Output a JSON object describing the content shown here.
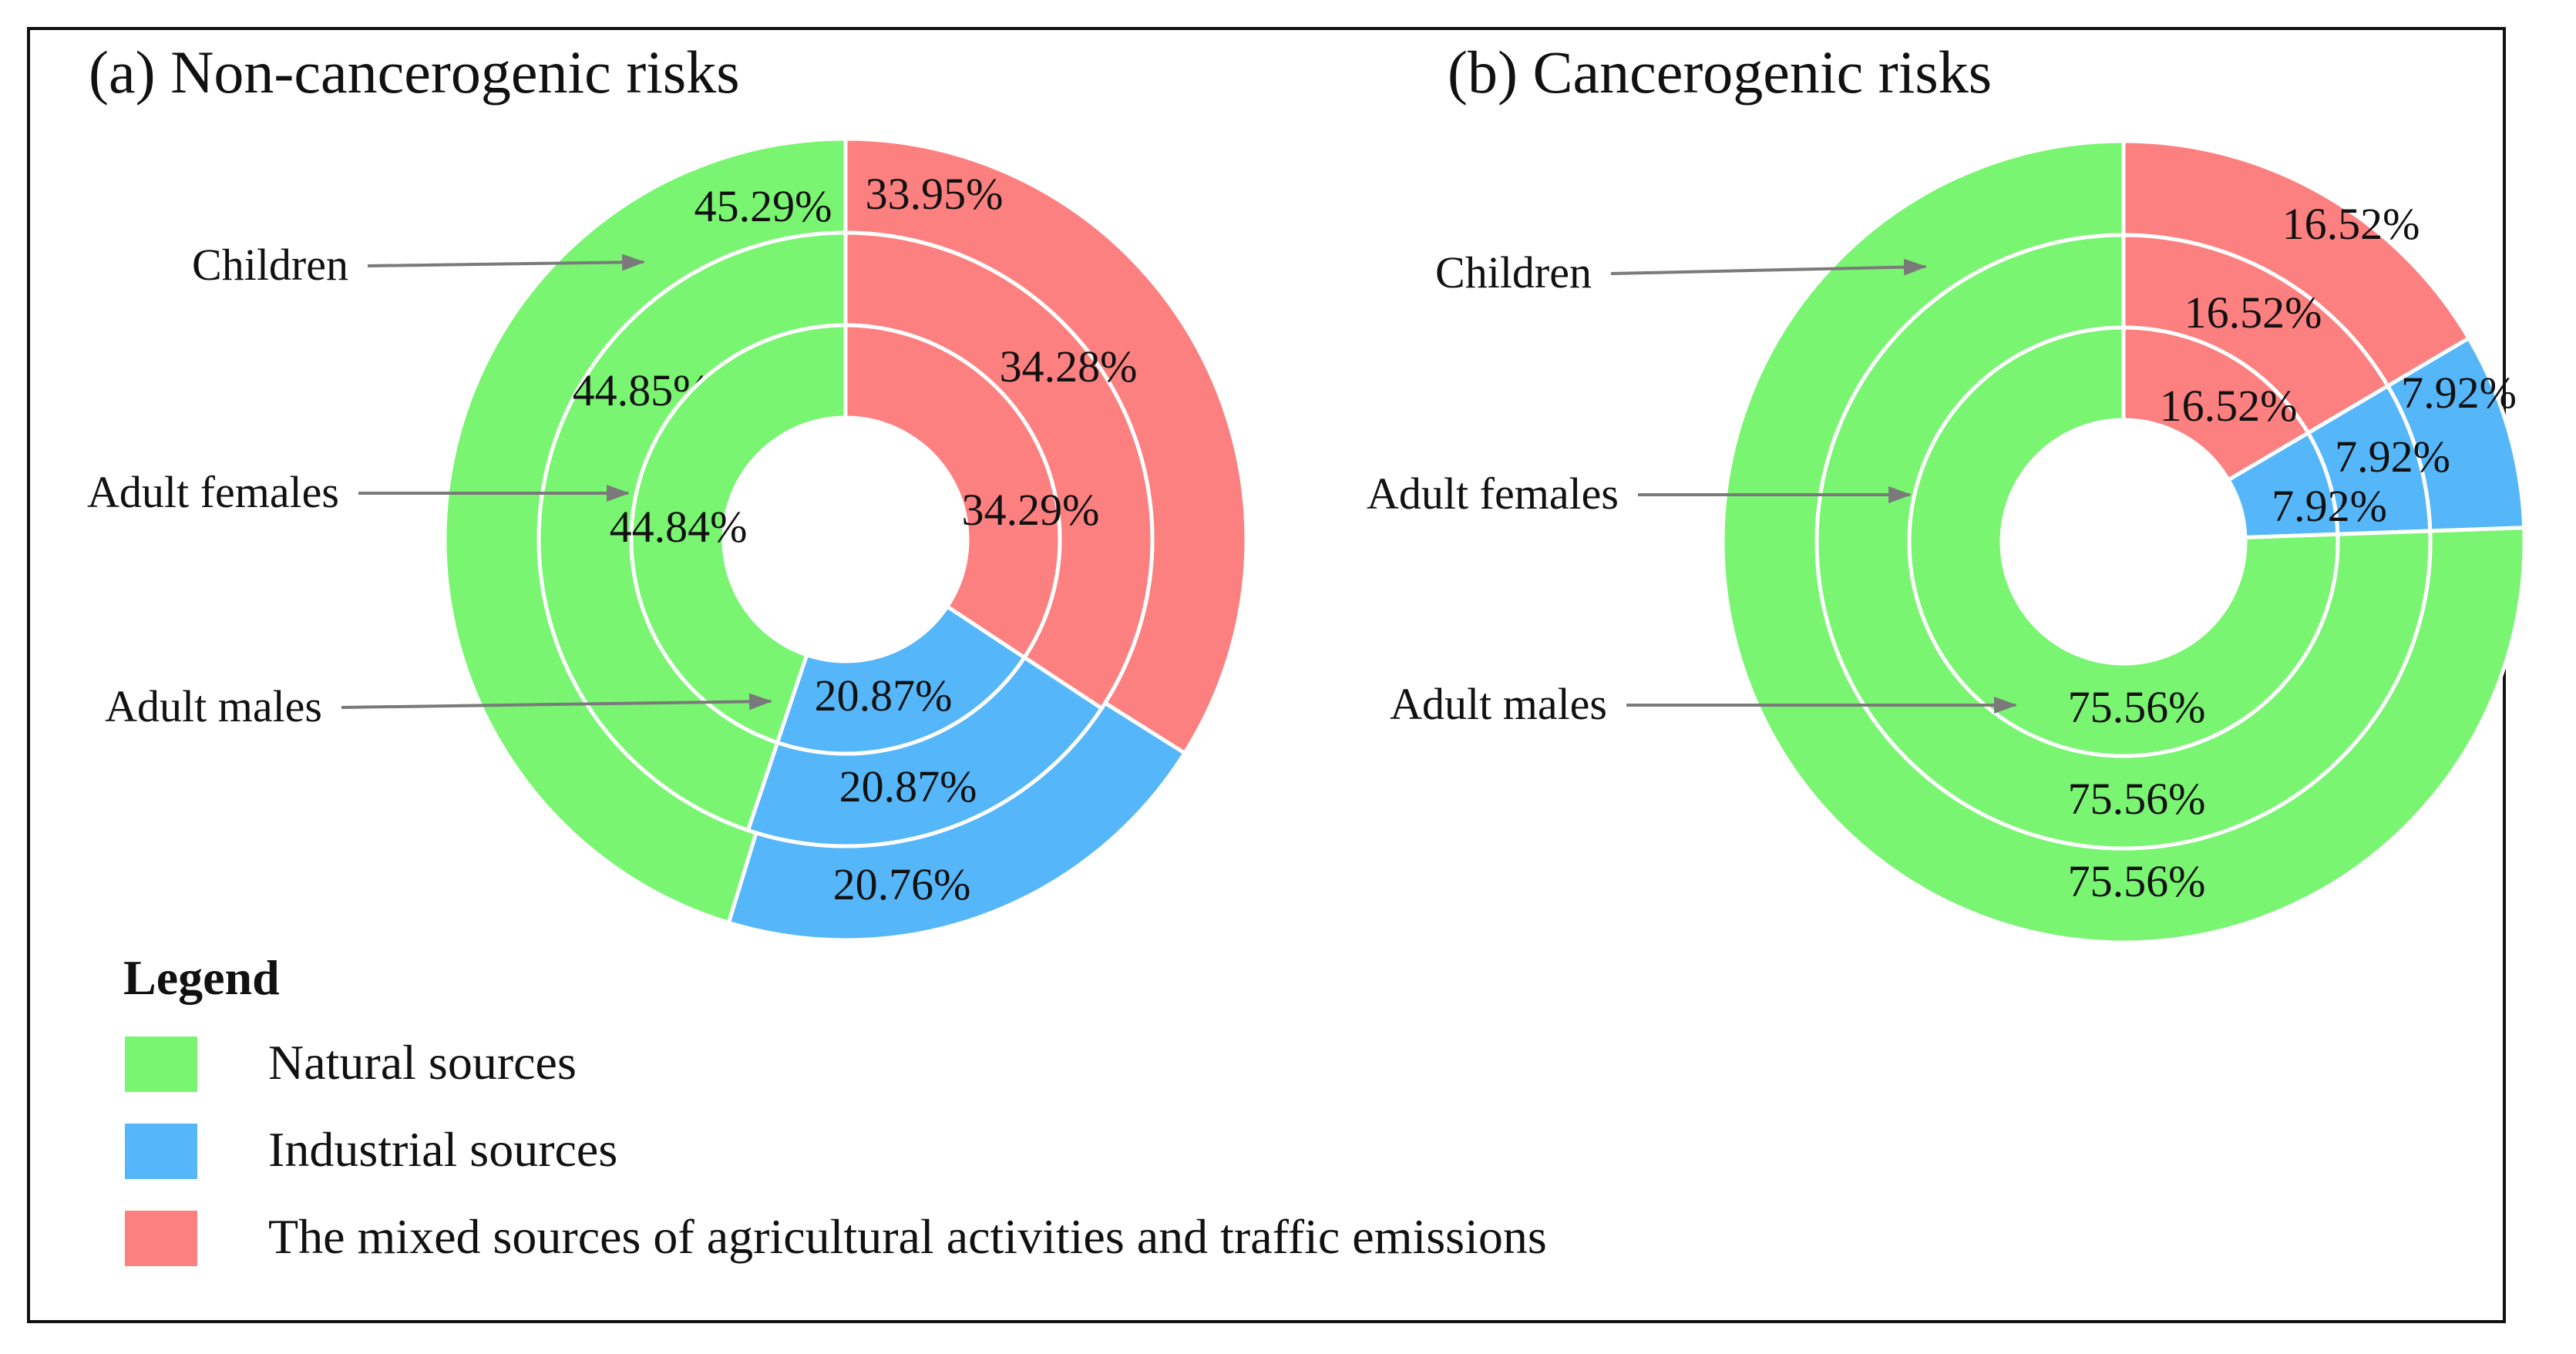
{
  "chart_data": [
    {
      "type": "pie",
      "title": "(a) Non-cancerogenic risks",
      "rings": [
        {
          "name": "Children",
          "values": [
            45.29,
            20.76,
            33.95
          ],
          "labels": [
            "45.29%",
            "20.76%",
            "33.95%"
          ]
        },
        {
          "name": "Adult females",
          "values": [
            44.85,
            20.87,
            34.28
          ],
          "labels": [
            "44.85%",
            "20.87%",
            "34.28%"
          ]
        },
        {
          "name": "Adult males",
          "values": [
            44.84,
            20.87,
            34.29
          ],
          "labels": [
            "44.84%",
            "20.87%",
            "34.29%"
          ]
        }
      ]
    },
    {
      "type": "pie",
      "title": "(b) Cancerogenic risks",
      "rings": [
        {
          "name": "Children",
          "values": [
            75.56,
            7.92,
            16.52
          ],
          "labels": [
            "75.56%",
            "7.92%",
            "16.52%"
          ]
        },
        {
          "name": "Adult females",
          "values": [
            75.56,
            7.92,
            16.52
          ],
          "labels": [
            "75.56%",
            "7.92%",
            "16.52%"
          ]
        },
        {
          "name": "Adult males",
          "values": [
            75.56,
            7.92,
            16.52
          ],
          "labels": [
            "75.56%",
            "7.92%",
            "16.52%"
          ]
        }
      ]
    }
  ],
  "legend": {
    "title": "Legend",
    "placement": "bottom-left",
    "items": [
      {
        "label": "Natural sources",
        "color": "#79f572"
      },
      {
        "label": "Industrial sources",
        "color": "#55b7f9"
      },
      {
        "label": "The mixed sources of agricultural activities and traffic emissions",
        "color": "#fd8080"
      }
    ]
  }
}
